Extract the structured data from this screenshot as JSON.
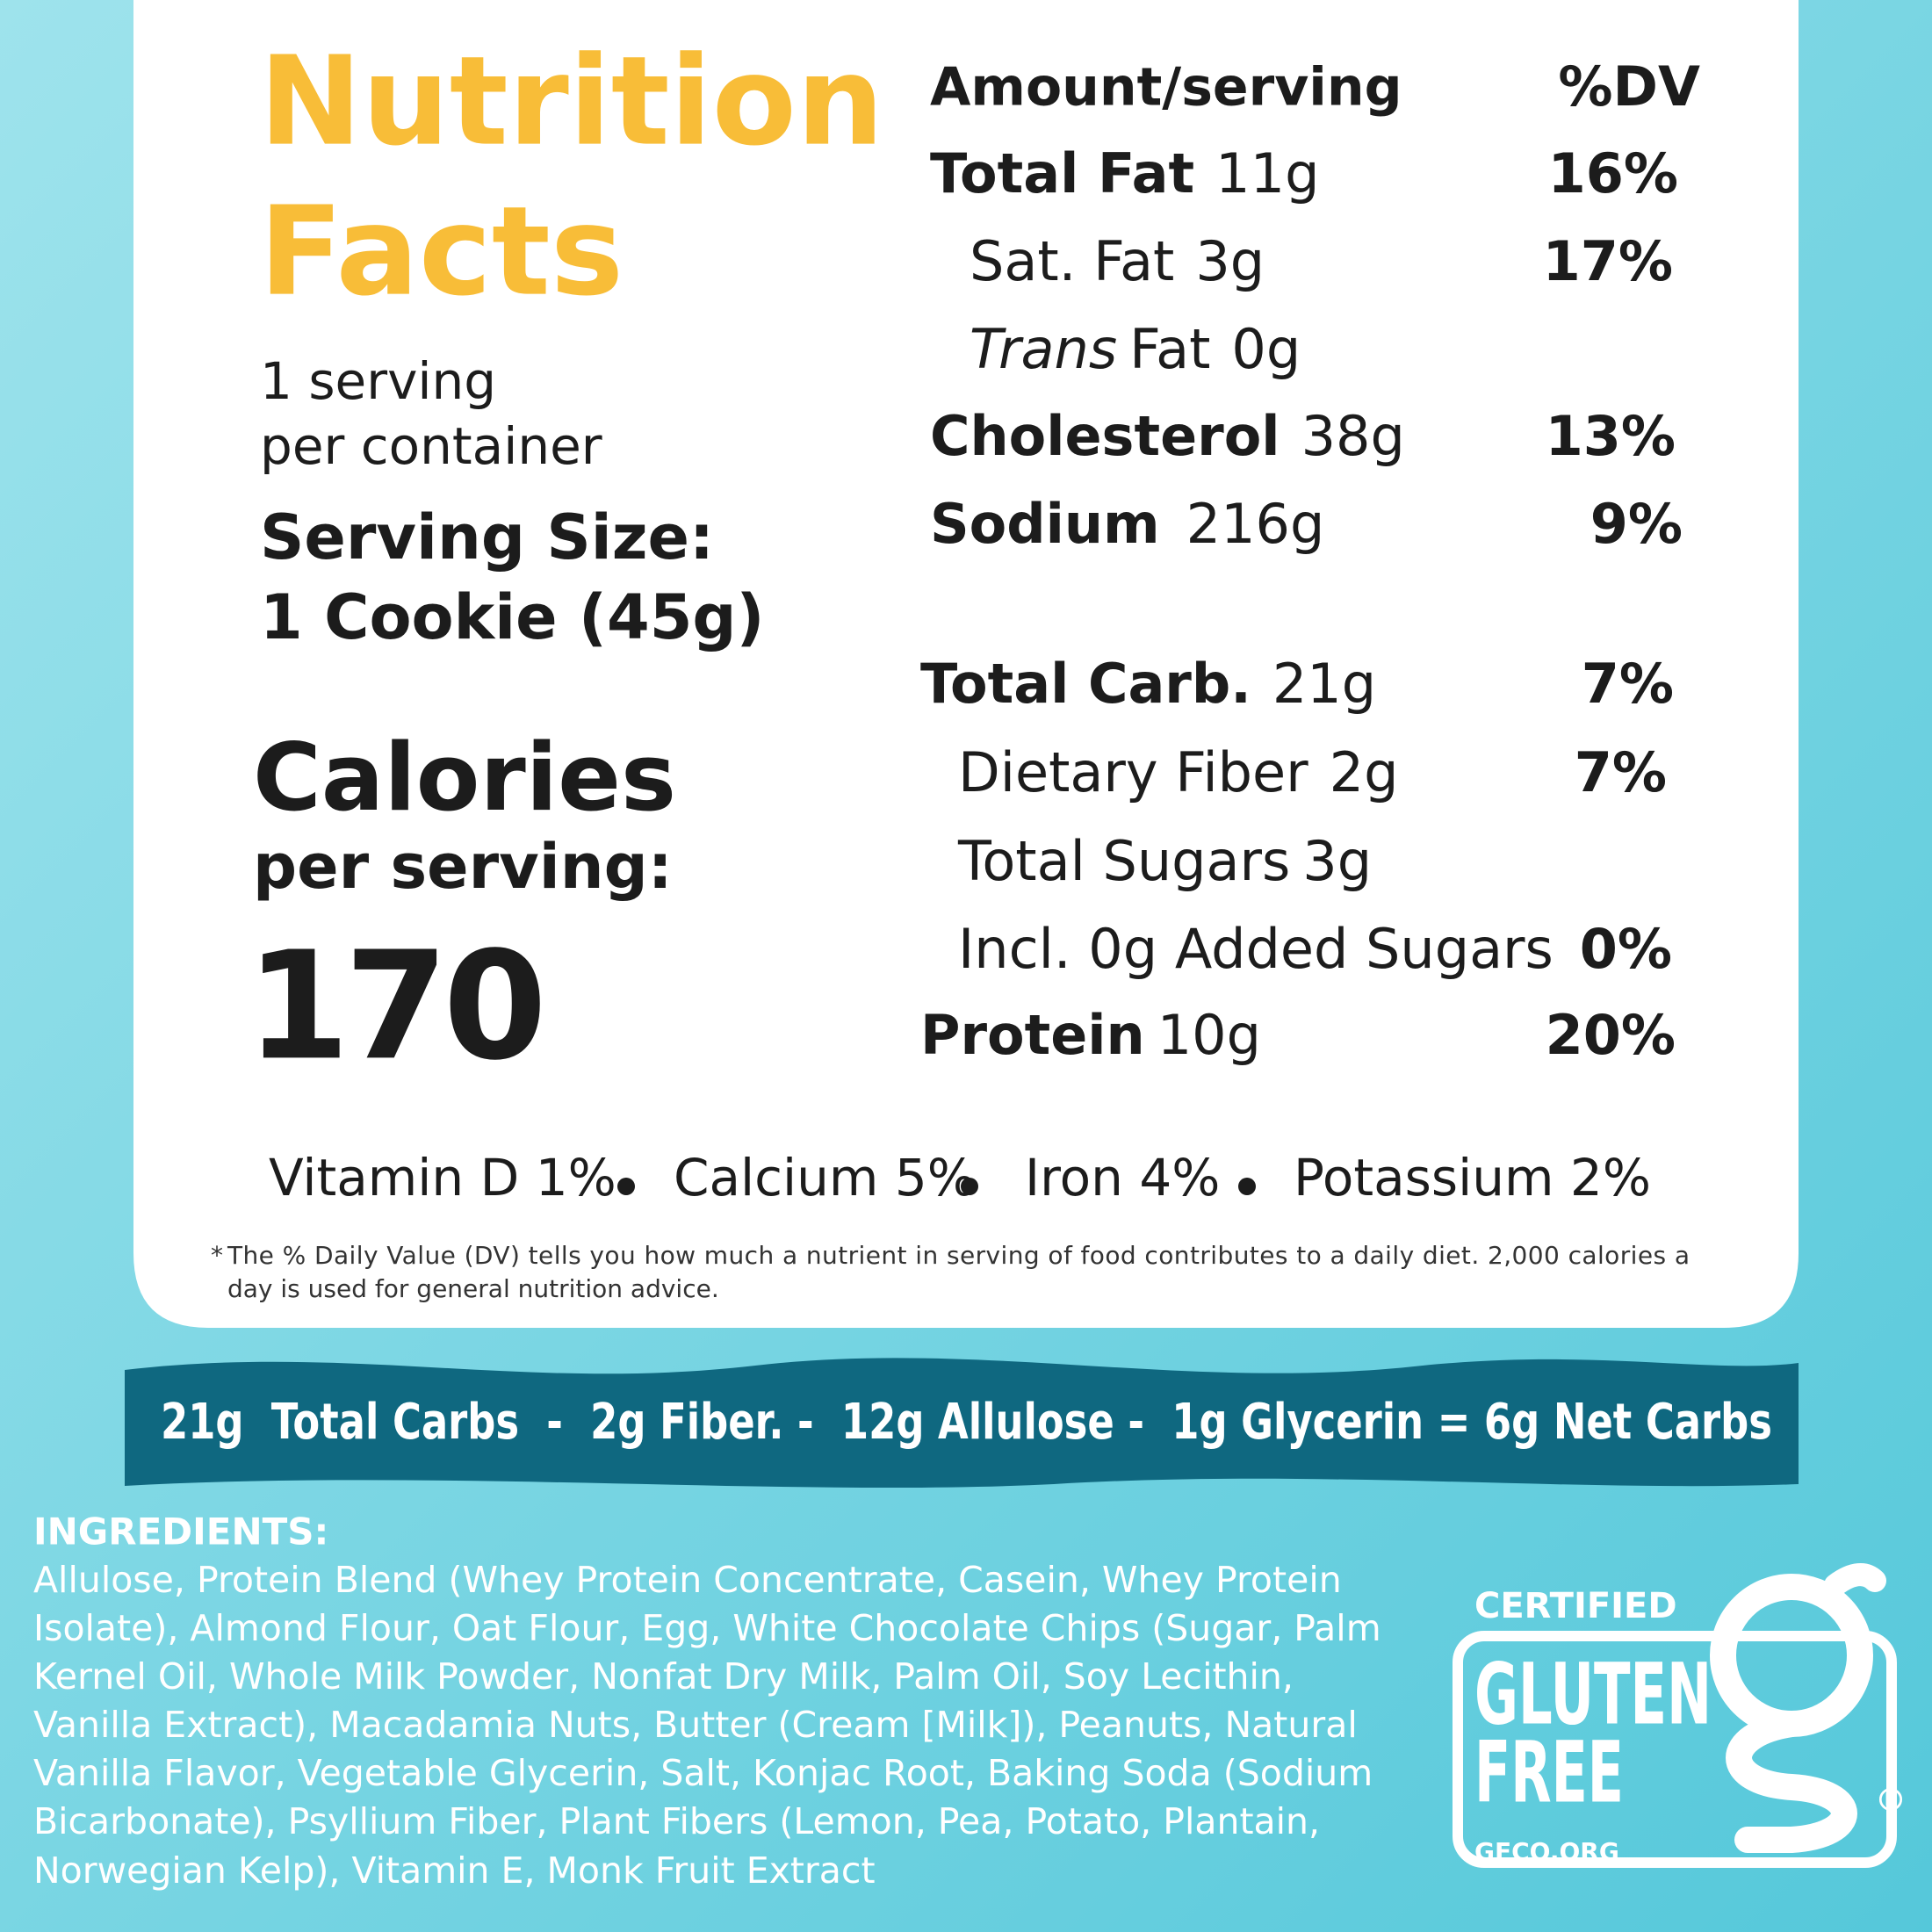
{
  "header": {
    "title_line1": "Nutrition",
    "title_line2": "Facts",
    "servings_line1": "1 serving",
    "servings_line2": "per container",
    "serving_size_label": "Serving Size:",
    "serving_size_value": "1 Cookie (45g)",
    "calories_label": "Calories",
    "calories_sub": "per serving:",
    "calories_value": "170"
  },
  "table": {
    "amount_header": "Amount/serving",
    "dv_header": "%DV",
    "rows": [
      {
        "name": "Total Fat",
        "amount": "11g",
        "dv": "16%"
      },
      {
        "name": "Sat. Fat",
        "amount": "3g",
        "dv": "17%"
      },
      {
        "name_italic": "Trans",
        "name": "Fat",
        "amount": "0g"
      },
      {
        "name": "Cholesterol",
        "amount": "38g",
        "dv": "13%"
      },
      {
        "name": "Sodium",
        "amount": "216g",
        "dv": "9%"
      },
      {
        "name": "Total Carb.",
        "amount": "21g",
        "dv": "7%"
      },
      {
        "name": "Dietary Fiber",
        "amount": "2g",
        "dv": "7%"
      },
      {
        "name": "Total Sugars",
        "amount": "3g"
      },
      {
        "name": "Incl. 0g Added Sugars",
        "dv": "0%"
      },
      {
        "name": "Protein",
        "amount": "10g",
        "dv": "20%"
      }
    ]
  },
  "vitamins": [
    "Vitamin D 1%",
    "Calcium 5%",
    "Iron 4%",
    "Potassium 2%"
  ],
  "footnote": {
    "marker": "*",
    "line1": "The % Daily Value (DV) tells you how much a nutrient in serving of food contributes to a daily diet. 2,000 calories a",
    "line2": "day is used for general nutrition advice."
  },
  "net_carbs": "21g  Total Carbs  -  2g Fiber. -  12g Allulose -  1g Glycerin = 6g Net Carbs",
  "ingredients": {
    "title": "INGREDIENTS:",
    "lines": [
      "Allulose, Protein Blend (Whey Protein Concentrate, Casein, Whey Protein",
      "Isolate), Almond Flour, Oat Flour, Egg, White Chocolate Chips (Sugar, Palm",
      "Kernel Oil, Whole Milk Powder, Nonfat Dry Milk, Palm Oil, Soy Lecithin,",
      "Vanilla Extract), Macadamia Nuts, Butter (Cream [Milk]), Peanuts, Natural",
      "Vanilla Flavor, Vegetable Glycerin, Salt, Konjac Root, Baking Soda (Sodium",
      "Bicarbonate), Psyllium Fiber, Plant Fibers (Lemon, Pea, Potato, Plantain,",
      "Norwegian Kelp), Vitamin E, Monk Fruit Extract"
    ]
  },
  "logo": {
    "top": "CERTIFIED",
    "line1": "GLUTEN",
    "line2": "FREE",
    "url": "GFCO.ORG",
    "mark": "®"
  }
}
